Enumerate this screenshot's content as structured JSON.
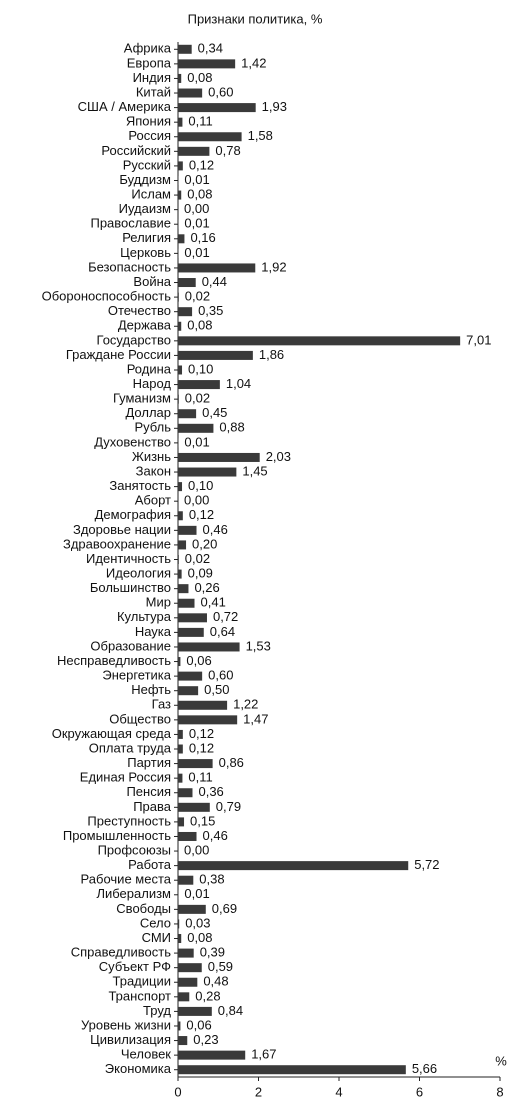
{
  "chart_data": {
    "type": "hbar",
    "title": "Признаки политика, %",
    "x_label": "%",
    "categories": [
      "Африка",
      "Европа",
      "Индия",
      "Китай",
      "США / Америка",
      "Япония",
      "Россия",
      "Российский",
      "Русский",
      "Буддизм",
      "Ислам",
      "Иудаизм",
      "Православие",
      "Религия",
      "Церковь",
      "Безопасность",
      "Война",
      "Обороноспособность",
      "Отечество",
      "Держава",
      "Государство",
      "Граждане России",
      "Родина",
      "Народ",
      "Гуманизм",
      "Доллар",
      "Рубль",
      "Духовенство",
      "Жизнь",
      "Закон",
      "Занятость",
      "Аборт",
      "Демография",
      "Здоровье нации",
      "Здравоохранение",
      "Идентичность",
      "Идеология",
      "Большинство",
      "Мир",
      "Культура",
      "Наука",
      "Образование",
      "Несправедливость",
      "Энергетика",
      "Нефть",
      "Газ",
      "Общество",
      "Окружающая среда",
      "Оплата труда",
      "Партия",
      "Единая Россия",
      "Пенсия",
      "Права",
      "Преступность",
      "Промышленность",
      "Профсоюзы",
      "Работа",
      "Рабочие места",
      "Либерализм",
      "Свободы",
      "Село",
      "СМИ",
      "Справедливость",
      "Субъект РФ",
      "Традиции",
      "Транспорт",
      "Труд",
      "Уровень жизни",
      "Цивилизация",
      "Человек",
      "Экономика"
    ],
    "values": [
      0.34,
      1.42,
      0.08,
      0.6,
      1.93,
      0.11,
      1.58,
      0.78,
      0.12,
      0.01,
      0.08,
      0.0,
      0.01,
      0.16,
      0.01,
      1.92,
      0.44,
      0.02,
      0.35,
      0.08,
      7.01,
      1.86,
      0.1,
      1.04,
      0.02,
      0.45,
      0.88,
      0.01,
      2.03,
      1.45,
      0.1,
      0.0,
      0.12,
      0.46,
      0.2,
      0.02,
      0.09,
      0.26,
      0.41,
      0.72,
      0.64,
      1.53,
      0.06,
      0.6,
      0.5,
      1.22,
      1.47,
      0.12,
      0.12,
      0.86,
      0.11,
      0.36,
      0.79,
      0.15,
      0.46,
      0.0,
      5.72,
      0.38,
      0.01,
      0.69,
      0.03,
      0.08,
      0.39,
      0.59,
      0.48,
      0.28,
      0.84,
      0.06,
      0.23,
      1.67,
      5.66
    ],
    "value_labels": [
      "0,34",
      "1,42",
      "0,08",
      "0,60",
      "1,93",
      "0,11",
      "1,58",
      "0,78",
      "0,12",
      "0,01",
      "0,08",
      "0,00",
      "0,01",
      "0,16",
      "0,01",
      "1,92",
      "0,44",
      "0,02",
      "0,35",
      "0,08",
      "7,01",
      "1,86",
      "0,10",
      "1,04",
      "0,02",
      "0,45",
      "0,88",
      "0,01",
      "2,03",
      "1,45",
      "0,10",
      "0,00",
      "0,12",
      "0,46",
      "0,20",
      "0,02",
      "0,09",
      "0,26",
      "0,41",
      "0,72",
      "0,64",
      "1,53",
      "0,06",
      "0,60",
      "0,50",
      "1,22",
      "1,47",
      "0,12",
      "0,12",
      "0,86",
      "0,11",
      "0,36",
      "0,79",
      "0,15",
      "0,46",
      "0,00",
      "5,72",
      "0,38",
      "0,01",
      "0,69",
      "0,03",
      "0,08",
      "0,39",
      "0,59",
      "0,48",
      "0,28",
      "0,84",
      "0,06",
      "0,23",
      "1,67",
      "5,66"
    ],
    "color": "#3a3a3a",
    "xlim": [
      0,
      8
    ],
    "xticks": [
      0,
      2,
      4,
      6,
      8
    ]
  }
}
